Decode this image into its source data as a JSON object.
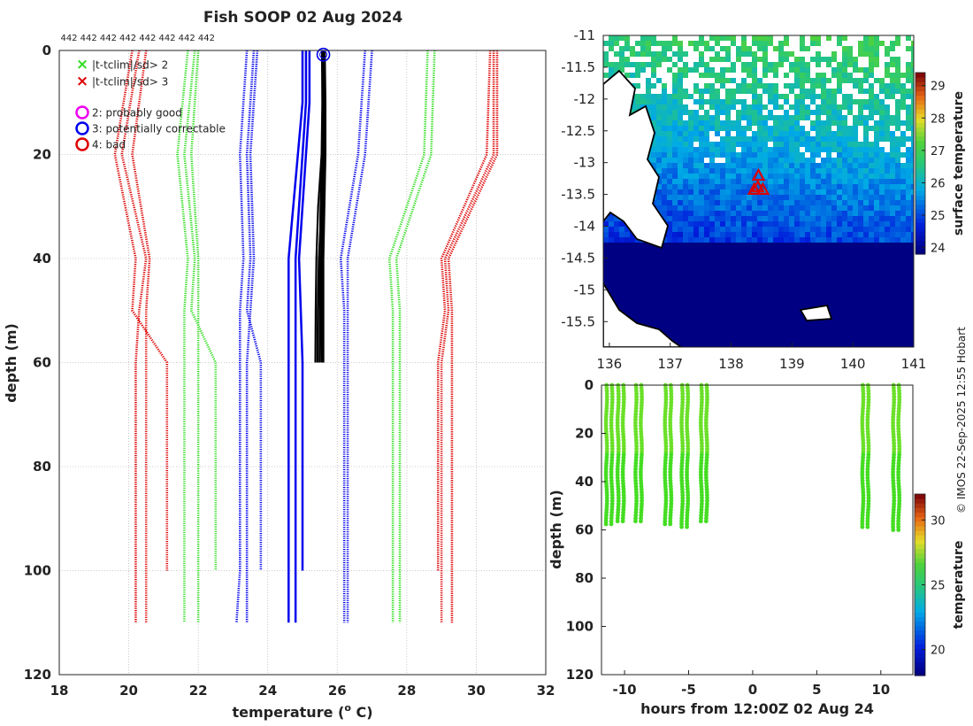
{
  "title": "Fish SOOP 02 Aug 2024",
  "credit": "© IMOS 22-Sep-2025 12:55 Hobart",
  "colors": {
    "red": "#dd0000",
    "green": "#33dd22",
    "blue": "#0000ee",
    "magenta": "#ee00ee",
    "black": "#000000",
    "grid": "#bbbbbb"
  },
  "chart_data": [
    {
      "id": "profile",
      "type": "line",
      "title": "Fish SOOP 02 Aug 2024",
      "xlabel": "temperature (",
      "xlabel_sup": "o",
      "xlabel_end": " C)",
      "ylabel": "depth (m)",
      "xlim": [
        18,
        32
      ],
      "ylim": [
        0,
        120
      ],
      "xticks": [
        "18",
        "20",
        "22",
        "24",
        "26",
        "28",
        "30",
        "32"
      ],
      "yticks": [
        "0",
        "20",
        "40",
        "60",
        "80",
        "100",
        "120"
      ],
      "top_labels": [
        "442",
        "442",
        "442",
        "442",
        "442",
        "442",
        "442",
        "442"
      ],
      "legend": [
        {
          "label": "|t-tclim|/sd> 2",
          "symbol": "x",
          "color": "#33dd22"
        },
        {
          "label": "|t-tclim|/sd> 3",
          "symbol": "x",
          "color": "#dd0000"
        },
        {
          "label": "2: probably good",
          "symbol": "o",
          "color": "#ee00ee"
        },
        {
          "label": "3: potentially correctable",
          "symbol": "o",
          "color": "#0000ee"
        },
        {
          "label": "4: bad",
          "symbol": "o",
          "color": "#dd0000"
        }
      ],
      "envelope_depths": [
        0,
        20,
        40,
        50,
        60,
        100,
        110
      ],
      "envelopes": [
        {
          "name": "clim -3sd a",
          "color": "#dd0000",
          "x": [
            20.1,
            19.6,
            20.2,
            20.1,
            21.1,
            21.1,
            null
          ]
        },
        {
          "name": "clim -3sd b",
          "color": "#dd0000",
          "x": [
            20.3,
            19.8,
            20.5,
            20.3,
            20.2,
            20.2,
            20.2
          ]
        },
        {
          "name": "clim -3sd c",
          "color": "#dd0000",
          "x": [
            20.5,
            20.1,
            20.6,
            20.5,
            20.5,
            20.5,
            20.5
          ]
        },
        {
          "name": "clim -2sd a",
          "color": "#33dd22",
          "x": [
            21.7,
            21.4,
            21.7,
            21.6,
            21.6,
            21.6,
            21.6
          ]
        },
        {
          "name": "clim -2sd b",
          "color": "#33dd22",
          "x": [
            21.9,
            21.6,
            21.9,
            21.8,
            22.5,
            22.5,
            null
          ]
        },
        {
          "name": "clim -2sd c",
          "color": "#33dd22",
          "x": [
            22.0,
            21.8,
            22.0,
            22.0,
            22.0,
            22.0,
            22.0
          ]
        },
        {
          "name": "clim -1sd a",
          "color": "#0000ee",
          "x": [
            23.4,
            23.2,
            23.3,
            23.2,
            23.2,
            23.2,
            23.1
          ]
        },
        {
          "name": "clim -1sd b",
          "color": "#0000ee",
          "x": [
            23.6,
            23.4,
            23.5,
            23.4,
            23.8,
            23.8,
            null
          ]
        },
        {
          "name": "clim -1sd c",
          "color": "#0000ee",
          "x": [
            23.7,
            23.5,
            23.6,
            23.5,
            23.4,
            23.4,
            23.4
          ]
        },
        {
          "name": "clim +1sd a",
          "color": "#0000ee",
          "x": [
            26.8,
            26.6,
            26.1,
            26.2,
            26.2,
            26.2,
            26.2
          ]
        },
        {
          "name": "clim +1sd b",
          "color": "#0000ee",
          "x": [
            27.0,
            26.8,
            26.3,
            26.3,
            26.3,
            26.3,
            26.3
          ]
        },
        {
          "name": "clim +2sd a",
          "color": "#33dd22",
          "x": [
            28.6,
            28.5,
            27.5,
            27.6,
            27.6,
            27.6,
            27.6
          ]
        },
        {
          "name": "clim +2sd b",
          "color": "#33dd22",
          "x": [
            28.8,
            28.7,
            27.7,
            27.8,
            27.8,
            27.8,
            27.8
          ]
        },
        {
          "name": "clim +3sd a",
          "color": "#dd0000",
          "x": [
            30.4,
            30.3,
            29.0,
            29.1,
            28.9,
            28.9,
            null
          ]
        },
        {
          "name": "clim +3sd b",
          "color": "#dd0000",
          "x": [
            30.5,
            30.5,
            29.1,
            29.2,
            29.0,
            29.0,
            29.0
          ]
        },
        {
          "name": "clim +3sd c",
          "color": "#dd0000",
          "x": [
            30.6,
            30.6,
            29.2,
            29.3,
            29.3,
            29.3,
            29.3
          ]
        }
      ],
      "mean_depths": [
        0,
        10,
        40,
        60,
        100,
        110
      ],
      "mean_lines": [
        {
          "name": "clim mean a",
          "color": "#0000ee",
          "x": [
            25.0,
            25.0,
            24.6,
            24.6,
            24.6,
            24.6
          ]
        },
        {
          "name": "clim mean b",
          "color": "#0000ee",
          "x": [
            25.1,
            25.1,
            24.8,
            24.8,
            24.8,
            24.8
          ]
        },
        {
          "name": "clim mean c",
          "color": "#0000ee",
          "x": [
            25.2,
            25.2,
            24.9,
            25.0,
            25.0,
            null
          ]
        }
      ],
      "observed": {
        "color": "#000000",
        "depths": [
          0,
          10,
          20,
          30,
          40,
          50,
          60
        ],
        "casts": [
          [
            25.6,
            25.62,
            25.6,
            25.57,
            25.55,
            25.55,
            25.55
          ],
          [
            25.58,
            25.6,
            25.57,
            25.52,
            25.5,
            25.5,
            25.49
          ],
          [
            25.62,
            25.64,
            25.63,
            25.6,
            25.58,
            25.57,
            25.57
          ],
          [
            25.56,
            25.57,
            25.55,
            25.45,
            25.4,
            25.38,
            25.37
          ],
          [
            25.64,
            25.66,
            25.66,
            25.63,
            25.6,
            25.6,
            25.6
          ],
          [
            25.59,
            25.61,
            25.6,
            25.55,
            25.47,
            25.44,
            25.43
          ]
        ],
        "flag_marker": {
          "x": 25.6,
          "depth": 0.8,
          "color": "#0000ee"
        }
      }
    },
    {
      "id": "sst_map",
      "type": "heatmap",
      "xlim": [
        135.9,
        141
      ],
      "ylim": [
        -15.9,
        -11
      ],
      "xticks": [
        "136",
        "137",
        "138",
        "139",
        "140",
        "141"
      ],
      "yticks": [
        "-11",
        "-11.5",
        "-12",
        "-12.5",
        "-13",
        "-13.5",
        "-14",
        "-14.5",
        "-15",
        "-15.5"
      ],
      "colorbar": {
        "label": "surface temperature",
        "ticks": [
          "24",
          "25",
          "26",
          "27",
          "28",
          "29"
        ],
        "range": [
          23.8,
          29.4
        ]
      },
      "stations": [
        {
          "lon": 138.45,
          "lat": -13.2
        },
        {
          "lon": 138.38,
          "lat": -13.42
        },
        {
          "lon": 138.52,
          "lat": -13.42
        },
        {
          "lon": 138.44,
          "lat": -13.38
        }
      ]
    },
    {
      "id": "time_depth",
      "type": "scatter",
      "xlabel": "hours from 12:00Z 02 Aug 24",
      "ylabel": "depth (m)",
      "xlim": [
        -11.8,
        12.5
      ],
      "ylim": [
        0,
        120
      ],
      "xticks": [
        "-10",
        "-5",
        "0",
        "5",
        "10"
      ],
      "yticks": [
        "0",
        "20",
        "40",
        "60",
        "80",
        "100",
        "120"
      ],
      "colorbar": {
        "label": "temperature",
        "ticks": [
          "20",
          "25",
          "30"
        ],
        "range": [
          18,
          32
        ]
      },
      "profiles": [
        {
          "hours": -11.2,
          "max_depth": 58
        },
        {
          "hours": -10.3,
          "max_depth": 57
        },
        {
          "hours": -8.9,
          "max_depth": 57
        },
        {
          "hours": -6.6,
          "max_depth": 58
        },
        {
          "hours": -5.3,
          "max_depth": 60
        },
        {
          "hours": -3.8,
          "max_depth": 57
        },
        {
          "hours": 8.8,
          "max_depth": 59
        },
        {
          "hours": 11.2,
          "max_depth": 61
        }
      ]
    }
  ]
}
